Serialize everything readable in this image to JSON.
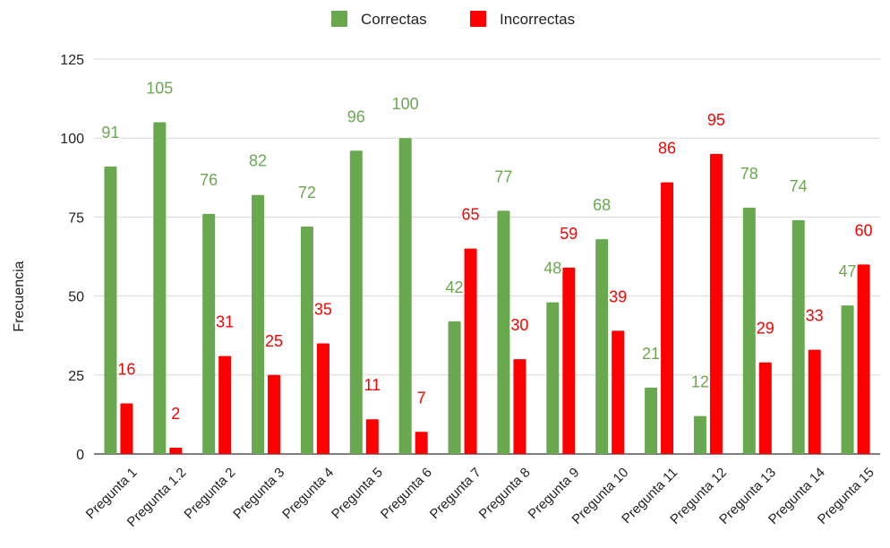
{
  "chart_data": {
    "type": "bar",
    "title": "",
    "xlabel": "",
    "ylabel": "Frecuencia",
    "ylim": [
      0,
      125
    ],
    "yticks": [
      0,
      25,
      50,
      75,
      100,
      125
    ],
    "grid": true,
    "legend_position": "top-center",
    "categories": [
      "Pregunta 1",
      "Pregunta 1.2",
      "Pregunta 2",
      "Pregunta 3",
      "Pregunta 4",
      "Pregunta 5",
      "Pregunta 6",
      "Pregunta 7",
      "Pregunta 8",
      "Pregunta 9",
      "Pregunta 10",
      "Pregunta 11",
      "Pregunta 12",
      "Pregunta 13",
      "Pregunta 14",
      "Pregunta 15"
    ],
    "series": [
      {
        "name": "Correctas",
        "color": "#6aa84f",
        "values": [
          91,
          105,
          76,
          82,
          72,
          96,
          100,
          42,
          77,
          48,
          68,
          21,
          12,
          78,
          74,
          47
        ]
      },
      {
        "name": "Incorrectas",
        "color": "#ff0000",
        "values": [
          16,
          2,
          31,
          25,
          35,
          11,
          7,
          65,
          30,
          59,
          39,
          86,
          95,
          29,
          33,
          60
        ]
      }
    ]
  }
}
